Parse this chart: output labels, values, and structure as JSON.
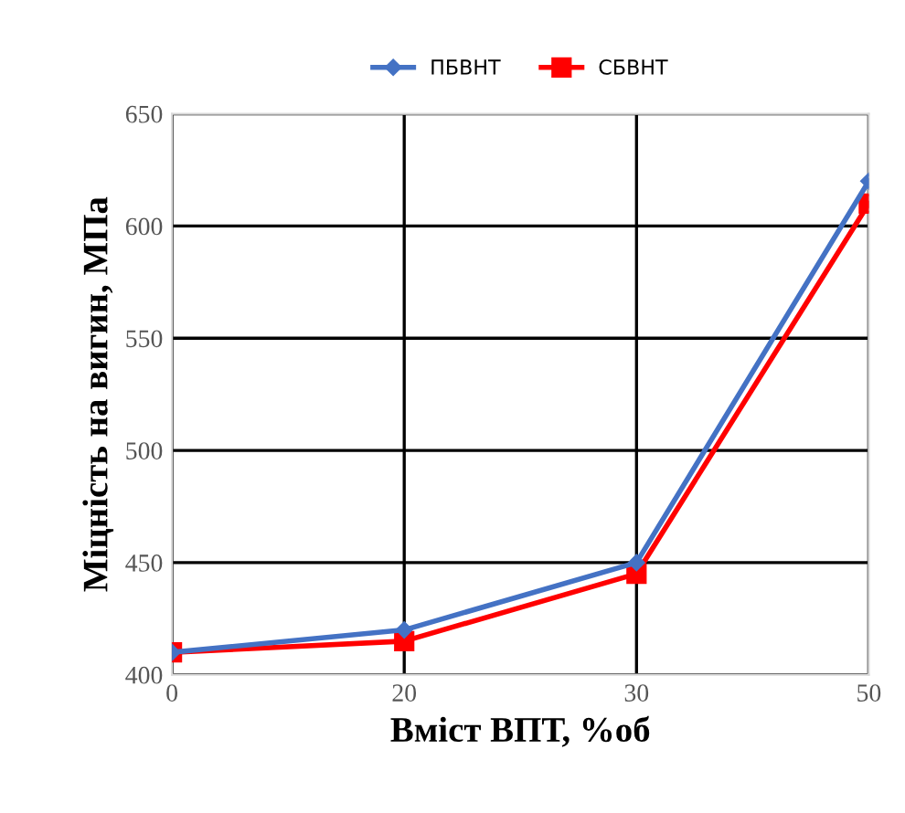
{
  "chart_data": {
    "type": "line",
    "xlabel": "Вміст ВПТ, %об",
    "ylabel": "Міцність на вигин, МПа",
    "categories": [
      "0",
      "20",
      "30",
      "50"
    ],
    "series": [
      {
        "name": "ПБВНТ",
        "color": "#4472c4",
        "values": [
          410,
          420,
          450,
          620
        ],
        "marker": "diamond"
      },
      {
        "name": "СБВНТ",
        "color": "#ff0000",
        "values": [
          410,
          415,
          445,
          610
        ],
        "marker": "square"
      }
    ],
    "ylim": [
      400,
      650
    ],
    "yticks": [
      400,
      450,
      500,
      550,
      600,
      650
    ],
    "grid": true,
    "legend": "top"
  }
}
